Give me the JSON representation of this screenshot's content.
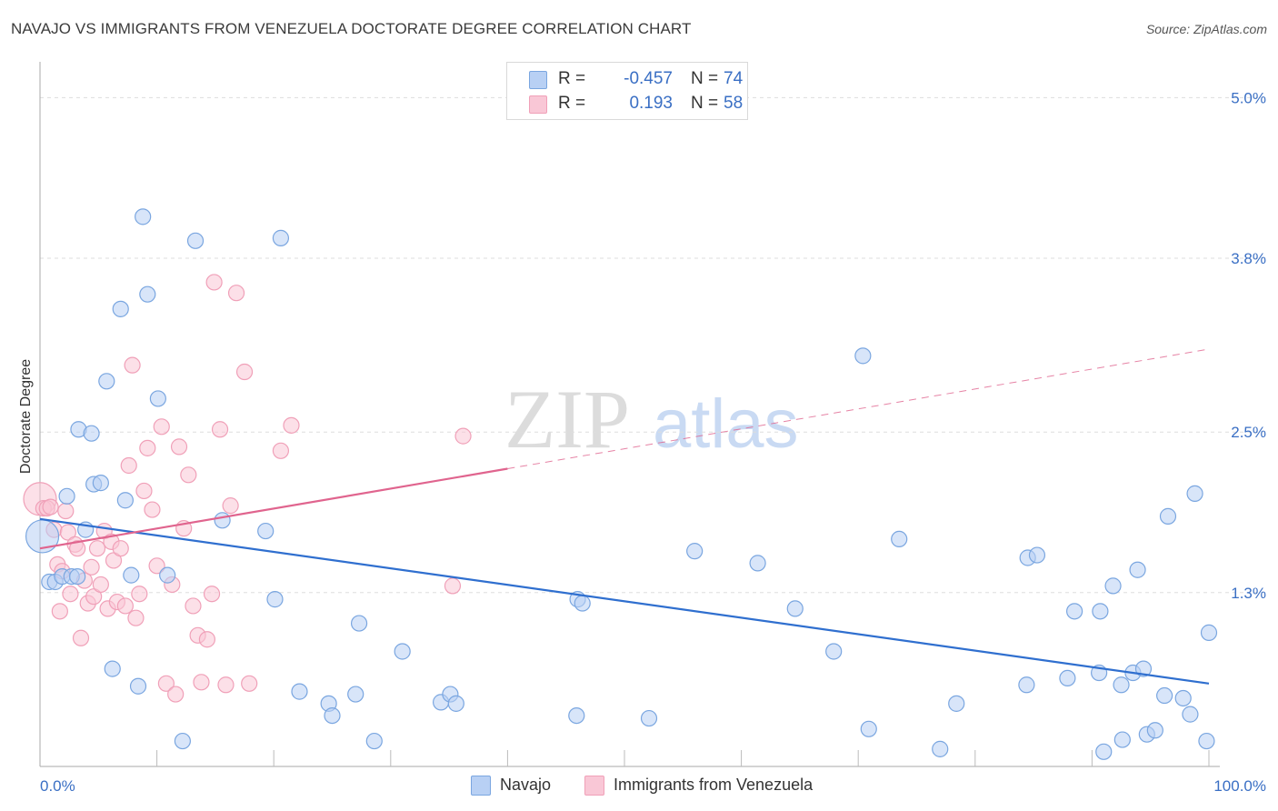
{
  "title": "NAVAJO VS IMMIGRANTS FROM VENEZUELA DOCTORATE DEGREE CORRELATION CHART",
  "source": "Source: ZipAtlas.com",
  "watermark": {
    "zip": "ZIP",
    "atlas": "atlas"
  },
  "legend": {
    "navajo": {
      "r_label": "R =",
      "r_value": "-0.457",
      "n_label": "N =",
      "n_value": "74"
    },
    "venezuela": {
      "r_label": "R =",
      "r_value": "0.193",
      "n_label": "N =",
      "n_value": "58"
    }
  },
  "colors": {
    "navajo_fill": "#b8d0f4",
    "navajo_stroke": "#7aa6e0",
    "navajo_line": "#2f6fcf",
    "venezuela_fill": "#f9c7d6",
    "venezuela_stroke": "#f0a0b8",
    "venezuela_line": "#e0648e",
    "axis_tick_label": "#3a6fc4",
    "grid": "#dddddd"
  },
  "chart_data": {
    "type": "scatter",
    "title": "NAVAJO VS IMMIGRANTS FROM VENEZUELA DOCTORATE DEGREE CORRELATION CHART",
    "xlabel": "",
    "ylabel": "Doctorate Degree",
    "xlim": [
      0,
      100
    ],
    "ylim": [
      0,
      5.2
    ],
    "x_tick_labels": [
      {
        "value": 0,
        "label": "0.0%"
      },
      {
        "value": 100,
        "label": "100.0%"
      }
    ],
    "y_tick_labels": [
      {
        "value": 1.3,
        "label": "1.3%"
      },
      {
        "value": 2.5,
        "label": "2.5%"
      },
      {
        "value": 3.8,
        "label": "3.8%"
      },
      {
        "value": 5.0,
        "label": "5.0%"
      }
    ],
    "series": [
      {
        "name": "Navajo",
        "r": -0.457,
        "n": 74,
        "trend": {
          "x0": 0,
          "y0": 1.85,
          "x1": 100,
          "y1": 0.62,
          "solid_until": 100
        },
        "points": [
          [
            0.2,
            1.72
          ],
          [
            0.8,
            1.38
          ],
          [
            1.3,
            1.38
          ],
          [
            1.9,
            1.42
          ],
          [
            2.3,
            2.02
          ],
          [
            2.7,
            1.42
          ],
          [
            3.2,
            1.42
          ],
          [
            3.3,
            2.52
          ],
          [
            3.9,
            1.77
          ],
          [
            4.4,
            2.49
          ],
          [
            4.6,
            2.11
          ],
          [
            5.2,
            2.12
          ],
          [
            5.7,
            2.88
          ],
          [
            6.2,
            0.73
          ],
          [
            6.9,
            3.42
          ],
          [
            7.3,
            1.99
          ],
          [
            7.8,
            1.43
          ],
          [
            8.4,
            0.6
          ],
          [
            8.8,
            4.11
          ],
          [
            9.2,
            3.53
          ],
          [
            10.1,
            2.75
          ],
          [
            10.9,
            1.43
          ],
          [
            12.2,
            0.19
          ],
          [
            13.3,
            3.93
          ],
          [
            15.6,
            1.84
          ],
          [
            19.3,
            1.76
          ],
          [
            20.1,
            1.25
          ],
          [
            20.6,
            3.95
          ],
          [
            22.2,
            0.56
          ],
          [
            24.7,
            0.47
          ],
          [
            25.0,
            0.38
          ],
          [
            27.3,
            1.07
          ],
          [
            27.0,
            0.54
          ],
          [
            28.6,
            0.19
          ],
          [
            31.0,
            0.86
          ],
          [
            34.3,
            0.48
          ],
          [
            35.1,
            0.54
          ],
          [
            35.6,
            0.47
          ],
          [
            45.9,
            0.38
          ],
          [
            46.0,
            1.25
          ],
          [
            46.4,
            1.22
          ],
          [
            52.1,
            0.36
          ],
          [
            56.0,
            1.61
          ],
          [
            61.4,
            1.52
          ],
          [
            64.6,
            1.18
          ],
          [
            67.9,
            0.86
          ],
          [
            70.4,
            3.07
          ],
          [
            70.9,
            0.28
          ],
          [
            73.5,
            1.7
          ],
          [
            77.0,
            0.13
          ],
          [
            78.4,
            0.47
          ],
          [
            84.4,
            0.61
          ],
          [
            84.5,
            1.56
          ],
          [
            85.3,
            1.58
          ],
          [
            87.9,
            0.66
          ],
          [
            88.5,
            1.16
          ],
          [
            90.6,
            0.7
          ],
          [
            90.7,
            1.16
          ],
          [
            91.0,
            0.11
          ],
          [
            91.8,
            1.35
          ],
          [
            92.5,
            0.61
          ],
          [
            92.6,
            0.2
          ],
          [
            93.5,
            0.7
          ],
          [
            93.9,
            1.47
          ],
          [
            94.4,
            0.73
          ],
          [
            94.7,
            0.24
          ],
          [
            95.4,
            0.27
          ],
          [
            96.2,
            0.53
          ],
          [
            96.5,
            1.87
          ],
          [
            97.8,
            0.51
          ],
          [
            98.4,
            0.39
          ],
          [
            98.8,
            2.04
          ],
          [
            99.8,
            0.19
          ],
          [
            100.0,
            1.0
          ]
        ]
      },
      {
        "name": "Immigrants from Venezuela",
        "r": 0.193,
        "n": 58,
        "trend": {
          "x0": 0,
          "y0": 1.63,
          "x1": 100,
          "y1": 3.12,
          "solid_until": 40
        },
        "points": [
          [
            0.0,
            2.0
          ],
          [
            0.3,
            1.93
          ],
          [
            0.6,
            1.93
          ],
          [
            0.9,
            1.94
          ],
          [
            1.2,
            1.77
          ],
          [
            1.5,
            1.51
          ],
          [
            1.7,
            1.16
          ],
          [
            1.9,
            1.46
          ],
          [
            2.2,
            1.91
          ],
          [
            2.4,
            1.75
          ],
          [
            2.6,
            1.29
          ],
          [
            3.0,
            1.66
          ],
          [
            3.2,
            1.63
          ],
          [
            3.5,
            0.96
          ],
          [
            3.8,
            1.39
          ],
          [
            4.1,
            1.22
          ],
          [
            4.4,
            1.49
          ],
          [
            4.6,
            1.27
          ],
          [
            4.9,
            1.63
          ],
          [
            5.2,
            1.36
          ],
          [
            5.5,
            1.76
          ],
          [
            5.8,
            1.18
          ],
          [
            6.1,
            1.68
          ],
          [
            6.3,
            1.54
          ],
          [
            6.6,
            1.23
          ],
          [
            6.9,
            1.63
          ],
          [
            7.3,
            1.2
          ],
          [
            7.6,
            2.25
          ],
          [
            7.9,
            3.0
          ],
          [
            8.2,
            1.11
          ],
          [
            8.5,
            1.29
          ],
          [
            8.9,
            2.06
          ],
          [
            9.2,
            2.38
          ],
          [
            9.6,
            1.92
          ],
          [
            10.0,
            1.5
          ],
          [
            10.4,
            2.54
          ],
          [
            10.8,
            0.62
          ],
          [
            11.3,
            1.36
          ],
          [
            11.6,
            0.54
          ],
          [
            11.9,
            2.39
          ],
          [
            12.3,
            1.78
          ],
          [
            12.7,
            2.18
          ],
          [
            13.1,
            1.2
          ],
          [
            13.5,
            0.98
          ],
          [
            13.8,
            0.63
          ],
          [
            14.3,
            0.95
          ],
          [
            14.7,
            1.29
          ],
          [
            14.9,
            3.62
          ],
          [
            15.4,
            2.52
          ],
          [
            15.9,
            0.61
          ],
          [
            16.3,
            1.95
          ],
          [
            16.8,
            3.54
          ],
          [
            17.5,
            2.95
          ],
          [
            17.9,
            0.62
          ],
          [
            20.6,
            2.36
          ],
          [
            21.5,
            2.55
          ],
          [
            35.3,
            1.35
          ],
          [
            36.2,
            2.47
          ]
        ]
      }
    ]
  },
  "bottom_legend": [
    {
      "label": "Navajo"
    },
    {
      "label": "Immigrants from Venezuela"
    }
  ]
}
